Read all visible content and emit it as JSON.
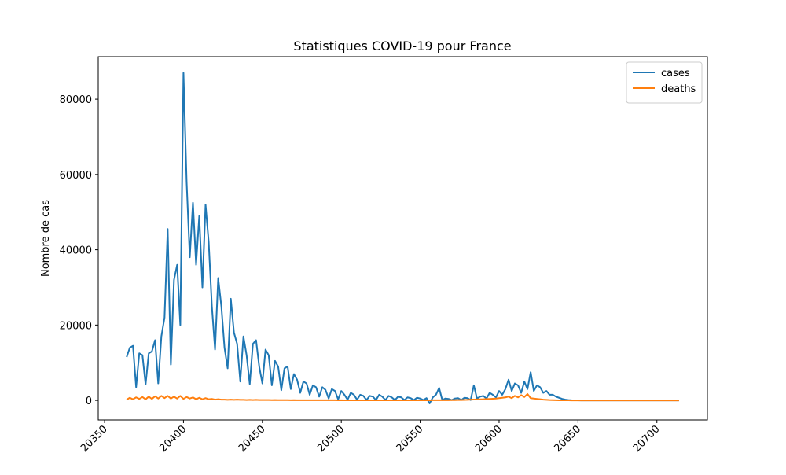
{
  "chart_data": {
    "type": "line",
    "title": "Statistiques COVID-19 pour France",
    "ylabel": "Nombre de cas",
    "x": [
      20364,
      20366,
      20368,
      20370,
      20372,
      20374,
      20376,
      20378,
      20380,
      20382,
      20384,
      20386,
      20388,
      20390,
      20392,
      20394,
      20396,
      20398,
      20400,
      20402,
      20404,
      20406,
      20408,
      20410,
      20412,
      20414,
      20416,
      20418,
      20420,
      20422,
      20424,
      20426,
      20428,
      20430,
      20432,
      20434,
      20436,
      20438,
      20440,
      20442,
      20444,
      20446,
      20448,
      20450,
      20452,
      20454,
      20456,
      20458,
      20460,
      20462,
      20464,
      20466,
      20468,
      20470,
      20472,
      20474,
      20476,
      20478,
      20480,
      20482,
      20484,
      20486,
      20488,
      20490,
      20492,
      20494,
      20496,
      20498,
      20500,
      20502,
      20504,
      20506,
      20508,
      20510,
      20512,
      20514,
      20516,
      20518,
      20520,
      20522,
      20524,
      20526,
      20528,
      20530,
      20532,
      20534,
      20536,
      20538,
      20540,
      20542,
      20544,
      20546,
      20548,
      20550,
      20552,
      20554,
      20556,
      20558,
      20560,
      20562,
      20564,
      20566,
      20568,
      20570,
      20572,
      20574,
      20576,
      20578,
      20580,
      20582,
      20584,
      20586,
      20588,
      20590,
      20592,
      20594,
      20596,
      20598,
      20600,
      20602,
      20604,
      20606,
      20608,
      20610,
      20612,
      20614,
      20616,
      20618,
      20620,
      20622,
      20624,
      20626,
      20628,
      20630,
      20632,
      20634,
      20636,
      20638,
      20640,
      20642,
      20644,
      20646,
      20648,
      20650,
      20652,
      20654,
      20656,
      20658,
      20660,
      20662,
      20664,
      20666,
      20668,
      20670,
      20672,
      20674,
      20676,
      20678,
      20680,
      20682,
      20684,
      20686,
      20688,
      20690,
      20692,
      20694,
      20696,
      20698,
      20700,
      20702,
      20704,
      20706,
      20708,
      20710,
      20712,
      20714
    ],
    "series": [
      {
        "name": "cases",
        "color": "#1f77b4",
        "values": [
          11500,
          14000,
          14500,
          3500,
          12500,
          12000,
          4200,
          12500,
          13000,
          16000,
          4500,
          17000,
          22000,
          45500,
          9500,
          32000,
          36000,
          20000,
          87000,
          58000,
          38000,
          52500,
          36000,
          49000,
          30000,
          52000,
          42000,
          25000,
          13500,
          32500,
          25000,
          14000,
          8500,
          27000,
          18000,
          15000,
          5000,
          17000,
          12000,
          4300,
          15000,
          16000,
          9000,
          4500,
          13500,
          12000,
          4000,
          10500,
          9000,
          2700,
          8500,
          9000,
          3000,
          7000,
          5500,
          2000,
          5000,
          4500,
          1500,
          4000,
          3500,
          1000,
          3500,
          2800,
          500,
          3000,
          2500,
          300,
          2500,
          1500,
          200,
          2000,
          1500,
          200,
          1500,
          1200,
          100,
          1200,
          1000,
          100,
          1500,
          1000,
          100,
          1200,
          800,
          100,
          1000,
          800,
          100,
          800,
          600,
          100,
          700,
          500,
          100,
          600,
          -800,
          800,
          1500,
          3300,
          100,
          500,
          400,
          100,
          500,
          600,
          100,
          700,
          600,
          100,
          4000,
          500,
          1000,
          1200,
          500,
          2000,
          1500,
          800,
          2500,
          1500,
          3000,
          5500,
          2500,
          4500,
          4000,
          2000,
          5000,
          3000,
          7500,
          2500,
          4000,
          3500,
          2000,
          2500,
          1500,
          1500,
          1000,
          700,
          400,
          200,
          100,
          50,
          20,
          10,
          0,
          0,
          0,
          0,
          0,
          0,
          0,
          0,
          0,
          0,
          0,
          0,
          0,
          0,
          0,
          0,
          0,
          0,
          0,
          0,
          0,
          0,
          0,
          0,
          0,
          0,
          0,
          0,
          0,
          0,
          0,
          0
        ]
      },
      {
        "name": "deaths",
        "color": "#ff7f0e",
        "values": [
          200,
          700,
          300,
          800,
          400,
          900,
          300,
          1000,
          400,
          1100,
          500,
          1200,
          600,
          1200,
          500,
          1000,
          500,
          1200,
          400,
          900,
          500,
          800,
          300,
          700,
          300,
          600,
          300,
          400,
          200,
          300,
          200,
          200,
          150,
          200,
          150,
          200,
          150,
          150,
          100,
          150,
          100,
          150,
          100,
          100,
          100,
          100,
          80,
          100,
          80,
          80,
          80,
          80,
          60,
          80,
          60,
          60,
          60,
          60,
          50,
          50,
          50,
          40,
          50,
          40,
          40,
          40,
          40,
          30,
          40,
          30,
          30,
          30,
          30,
          30,
          30,
          30,
          20,
          30,
          20,
          20,
          20,
          20,
          20,
          20,
          20,
          20,
          20,
          20,
          20,
          20,
          20,
          20,
          20,
          20,
          30,
          30,
          30,
          40,
          40,
          50,
          50,
          60,
          60,
          70,
          80,
          90,
          100,
          120,
          150,
          200,
          220,
          250,
          280,
          300,
          350,
          400,
          450,
          500,
          600,
          700,
          800,
          1000,
          600,
          1200,
          800,
          1400,
          900,
          1700,
          600,
          500,
          400,
          300,
          200,
          150,
          100,
          80,
          50,
          30,
          20,
          10,
          10,
          5,
          0,
          0,
          0,
          0,
          0,
          0,
          0,
          0,
          0,
          0,
          0,
          0,
          0,
          0,
          0,
          0,
          0,
          0,
          0,
          0,
          0,
          0,
          0,
          0,
          0,
          0,
          0,
          0,
          0,
          0,
          0,
          0,
          0,
          0
        ]
      }
    ],
    "xlim": [
      20346,
      20732
    ],
    "ylim": [
      -5200,
      91300
    ],
    "xticks": [
      20350,
      20400,
      20450,
      20500,
      20550,
      20600,
      20650,
      20700
    ],
    "yticks": [
      0,
      20000,
      40000,
      60000,
      80000
    ],
    "legend": "upper right"
  }
}
